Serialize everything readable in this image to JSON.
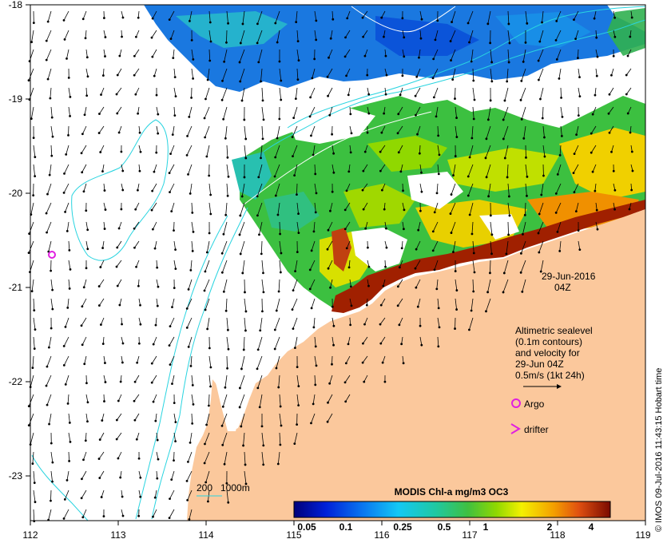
{
  "map": {
    "lon_ticks": [
      "112",
      "113",
      "114",
      "115",
      "116",
      "117",
      "118",
      "119"
    ],
    "lat_ticks": [
      "-18",
      "-19",
      "-20",
      "-21",
      "-22",
      "-23"
    ],
    "colors": {
      "land": "#fbc89c",
      "contour": "#29d4e0",
      "argo": "#e020e0",
      "drifter": "#e020e0",
      "sealevel_contour": "#ffffff"
    }
  },
  "date_label": {
    "line1": "29-Jun-2016",
    "line2": "04Z"
  },
  "legend": {
    "lines": [
      "Altimetric sealevel",
      "(0.1m contours)",
      "and velocity for",
      "29-Jun 04Z",
      "0.5m/s (1kt 24h)"
    ],
    "argo_label": "Argo",
    "drifter_label": "drifter",
    "argo_icon": "circle-marker-icon",
    "drifter_icon": "chevron-marker-icon"
  },
  "bathymetry_legend": {
    "labels": [
      "200",
      "1000m"
    ]
  },
  "colorbar": {
    "title": "MODIS Chl-a mg/m3 OC3",
    "ticks": [
      "0.05",
      "0.1",
      "0.25",
      "0.5",
      "1",
      "2",
      "4"
    ]
  },
  "credit": "© IMOS 09-Jul-2016 11:43:15 Hobart time"
}
